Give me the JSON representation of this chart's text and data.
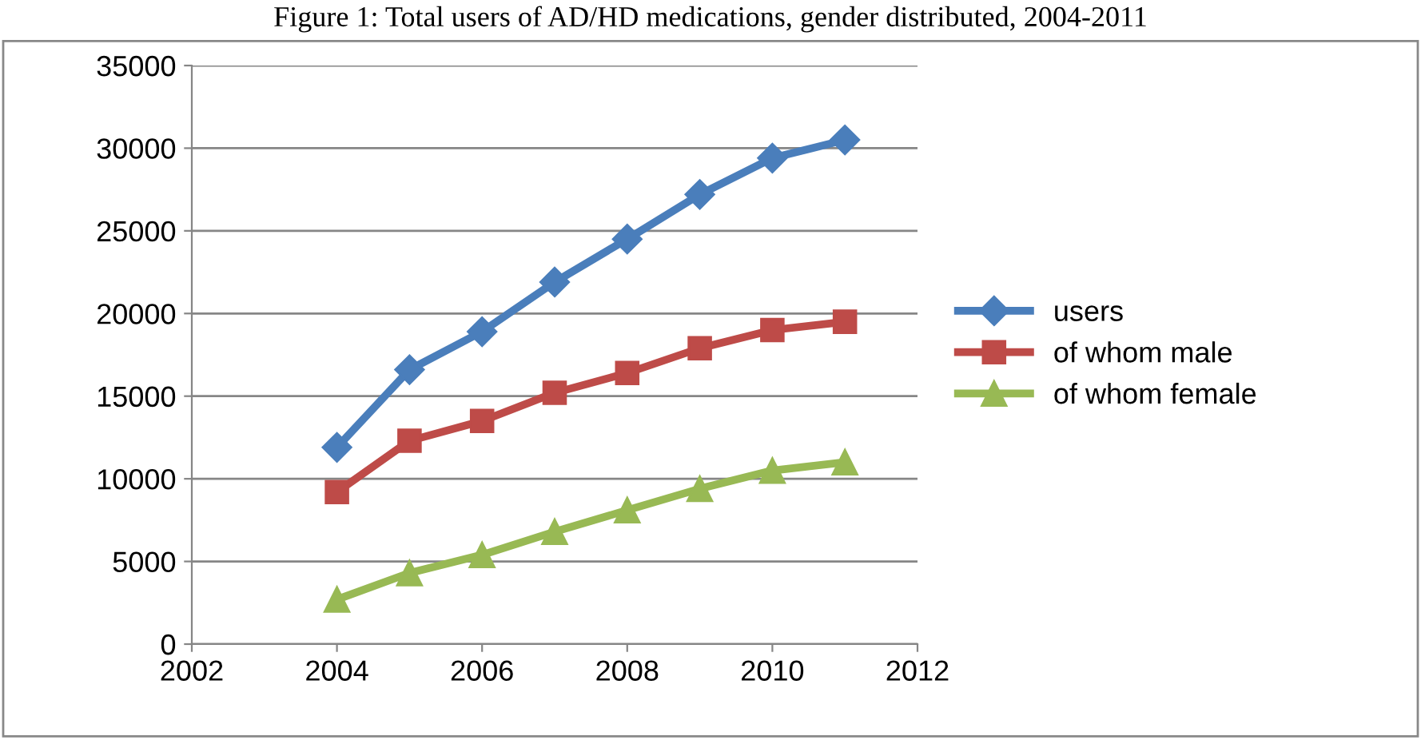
{
  "chart_data": {
    "type": "line",
    "title": "Figure 1: Total users of AD/HD medications, gender distributed, 2004-2011",
    "x": [
      2004,
      2005,
      2006,
      2007,
      2008,
      2009,
      2010,
      2011
    ],
    "series": [
      {
        "name": "users",
        "color": "#4a7ebb",
        "marker": "diamond",
        "values": [
          11900,
          16600,
          18900,
          21900,
          24500,
          27200,
          29400,
          30500
        ]
      },
      {
        "name": "of whom male",
        "color": "#be4b48",
        "marker": "square",
        "values": [
          9200,
          12300,
          13500,
          15200,
          16400,
          17900,
          19000,
          19500
        ]
      },
      {
        "name": "of whom female",
        "color": "#98b954",
        "marker": "triangle",
        "values": [
          2700,
          4300,
          5400,
          6800,
          8100,
          9400,
          10500,
          11000
        ]
      }
    ],
    "xlim": [
      2002,
      2012
    ],
    "xticks": [
      2002,
      2004,
      2006,
      2008,
      2010,
      2012
    ],
    "ylim": [
      0,
      35000
    ],
    "yticks": [
      0,
      5000,
      10000,
      15000,
      20000,
      25000,
      30000,
      35000
    ],
    "grid": "y",
    "legend": "right",
    "line_style": "solid"
  }
}
